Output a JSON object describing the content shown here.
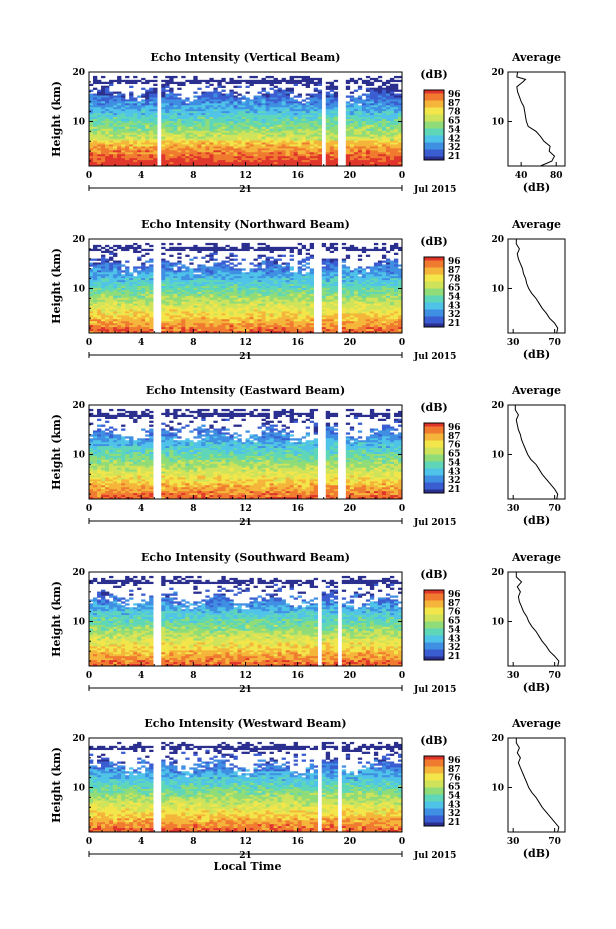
{
  "chart_data": [
    {
      "type": "heatmap",
      "title": "Echo Intensity (Vertical Beam)",
      "ylabel": "Height (km)",
      "ylim": [
        1,
        20
      ],
      "yticks": [
        20,
        10
      ],
      "x_ticks": [
        "0",
        "4",
        "8",
        "12",
        "16",
        "20",
        "0"
      ],
      "x_range_hours": [
        0,
        24
      ],
      "date_marker": "21",
      "date_label": "Jul 2015",
      "colorbar": {
        "unit": "(dB)",
        "ticks": [
          "96",
          "87",
          "78",
          "65",
          "54",
          "42",
          "32",
          "21"
        ]
      },
      "data_gaps_hours": [
        [
          5.1,
          5.6
        ],
        [
          17.8,
          18.1
        ],
        [
          19.2,
          19.6
        ]
      ],
      "profile": {
        "title": "Average",
        "xlabel": "(dB)",
        "xticks": [
          "40",
          "80"
        ],
        "xlim": [
          25,
          90
        ],
        "yticks": [
          20,
          10
        ],
        "points": [
          [
            1,
            62
          ],
          [
            2,
            75
          ],
          [
            3,
            78
          ],
          [
            4,
            72
          ],
          [
            5,
            73
          ],
          [
            6,
            66
          ],
          [
            7,
            62
          ],
          [
            8,
            57
          ],
          [
            9,
            48
          ],
          [
            10,
            46
          ],
          [
            11,
            45
          ],
          [
            12,
            44
          ],
          [
            13,
            43
          ],
          [
            14,
            40
          ],
          [
            15,
            38
          ],
          [
            16,
            36
          ],
          [
            17,
            35
          ],
          [
            18,
            42
          ],
          [
            18.5,
            45
          ],
          [
            19,
            35
          ],
          [
            20,
            36
          ]
        ]
      }
    },
    {
      "type": "heatmap",
      "title": "Echo Intensity (Northward Beam)",
      "ylabel": "Height (km)",
      "ylim": [
        1,
        20
      ],
      "yticks": [
        20,
        10
      ],
      "x_ticks": [
        "0",
        "4",
        "8",
        "12",
        "16",
        "20",
        "0"
      ],
      "x_range_hours": [
        0,
        24
      ],
      "date_marker": "21",
      "date_label": "Jul 2015",
      "colorbar": {
        "unit": "(dB)",
        "ticks": [
          "96",
          "87",
          "78",
          "65",
          "54",
          "43",
          "32",
          "21"
        ]
      },
      "data_gaps_hours": [
        [
          5.0,
          5.5
        ],
        [
          17.3,
          17.7
        ],
        [
          19.1,
          19.5
        ]
      ],
      "profile": {
        "title": "Average",
        "xlabel": "(dB)",
        "xticks": [
          "30",
          "70"
        ],
        "xlim": [
          25,
          80
        ],
        "yticks": [
          20,
          10
        ],
        "points": [
          [
            1,
            72
          ],
          [
            2,
            73
          ],
          [
            3,
            70
          ],
          [
            4,
            65
          ],
          [
            5,
            62
          ],
          [
            6,
            58
          ],
          [
            7,
            55
          ],
          [
            8,
            52
          ],
          [
            9,
            48
          ],
          [
            10,
            45
          ],
          [
            11,
            43
          ],
          [
            12,
            42
          ],
          [
            13,
            40
          ],
          [
            14,
            39
          ],
          [
            15,
            37
          ],
          [
            16,
            35
          ],
          [
            17,
            34
          ],
          [
            18,
            36
          ],
          [
            19,
            33
          ],
          [
            20,
            33
          ]
        ]
      }
    },
    {
      "type": "heatmap",
      "title": "Echo Intensity (Eastward Beam)",
      "ylabel": "Height (km)",
      "ylim": [
        1,
        20
      ],
      "yticks": [
        20,
        10
      ],
      "x_ticks": [
        "0",
        "4",
        "8",
        "12",
        "16",
        "20",
        "0"
      ],
      "x_range_hours": [
        0,
        24
      ],
      "date_marker": "21",
      "date_label": "Jul 2015",
      "colorbar": {
        "unit": "(dB)",
        "ticks": [
          "96",
          "87",
          "76",
          "65",
          "54",
          "43",
          "32",
          "21"
        ]
      },
      "data_gaps_hours": [
        [
          5.0,
          5.5
        ],
        [
          17.6,
          18.0
        ],
        [
          19.2,
          19.6
        ]
      ],
      "profile": {
        "title": "Average",
        "xlabel": "(dB)",
        "xticks": [
          "30",
          "70"
        ],
        "xlim": [
          25,
          80
        ],
        "yticks": [
          20,
          10
        ],
        "points": [
          [
            1,
            72
          ],
          [
            2,
            73
          ],
          [
            3,
            70
          ],
          [
            4,
            66
          ],
          [
            5,
            62
          ],
          [
            6,
            58
          ],
          [
            7,
            55
          ],
          [
            8,
            52
          ],
          [
            9,
            47
          ],
          [
            10,
            44
          ],
          [
            11,
            42
          ],
          [
            12,
            40
          ],
          [
            13,
            38
          ],
          [
            14,
            37
          ],
          [
            15,
            35
          ],
          [
            16,
            34
          ],
          [
            17,
            33
          ],
          [
            18,
            35
          ],
          [
            19,
            32
          ],
          [
            20,
            32
          ]
        ]
      }
    },
    {
      "type": "heatmap",
      "title": "Echo Intensity (Southward Beam)",
      "ylabel": "Height (km)",
      "ylim": [
        1,
        20
      ],
      "yticks": [
        20,
        10
      ],
      "x_ticks": [
        "0",
        "4",
        "8",
        "12",
        "16",
        "20",
        "0"
      ],
      "x_range_hours": [
        0,
        24
      ],
      "date_marker": "21",
      "date_label": "Jul 2015",
      "colorbar": {
        "unit": "(dB)",
        "ticks": [
          "96",
          "87",
          "76",
          "65",
          "54",
          "43",
          "32",
          "21"
        ]
      },
      "data_gaps_hours": [
        [
          5.0,
          5.5
        ],
        [
          17.4,
          17.8
        ],
        [
          19.1,
          19.5
        ]
      ],
      "profile": {
        "title": "Average",
        "xlabel": "(dB)",
        "xticks": [
          "30",
          "70"
        ],
        "xlim": [
          25,
          80
        ],
        "yticks": [
          20,
          10
        ],
        "points": [
          [
            1,
            73
          ],
          [
            2,
            74
          ],
          [
            3,
            70
          ],
          [
            4,
            65
          ],
          [
            5,
            62
          ],
          [
            6,
            58
          ],
          [
            7,
            55
          ],
          [
            8,
            52
          ],
          [
            9,
            48
          ],
          [
            10,
            45
          ],
          [
            11,
            43
          ],
          [
            12,
            40
          ],
          [
            13,
            38
          ],
          [
            14,
            36
          ],
          [
            15,
            35
          ],
          [
            16,
            37
          ],
          [
            17,
            34
          ],
          [
            18,
            38
          ],
          [
            19,
            33
          ],
          [
            20,
            33
          ]
        ]
      }
    },
    {
      "type": "heatmap",
      "title": "Echo Intensity (Westward Beam)",
      "ylabel": "Height (km)",
      "ylim": [
        1,
        20
      ],
      "yticks": [
        20,
        10
      ],
      "x_ticks": [
        "0",
        "4",
        "8",
        "12",
        "16",
        "20",
        "0"
      ],
      "x_range_hours": [
        0,
        24
      ],
      "date_marker": "21",
      "date_label": "Jul 2015",
      "xlabel": "Local Time",
      "colorbar": {
        "unit": "(dB)",
        "ticks": [
          "96",
          "87",
          "76",
          "65",
          "54",
          "43",
          "32",
          "21"
        ]
      },
      "data_gaps_hours": [
        [
          5.0,
          5.5
        ],
        [
          17.4,
          17.8
        ],
        [
          19.1,
          19.5
        ]
      ],
      "profile": {
        "title": "Average",
        "xlabel": "(dB)",
        "xticks": [
          "30",
          "70"
        ],
        "xlim": [
          25,
          80
        ],
        "yticks": [
          20,
          10
        ],
        "points": [
          [
            1,
            73
          ],
          [
            2,
            74
          ],
          [
            3,
            70
          ],
          [
            4,
            66
          ],
          [
            5,
            62
          ],
          [
            6,
            58
          ],
          [
            7,
            55
          ],
          [
            8,
            52
          ],
          [
            9,
            48
          ],
          [
            10,
            45
          ],
          [
            11,
            43
          ],
          [
            12,
            41
          ],
          [
            13,
            39
          ],
          [
            14,
            37
          ],
          [
            15,
            35
          ],
          [
            16,
            37
          ],
          [
            17,
            34
          ],
          [
            18,
            36
          ],
          [
            19,
            33
          ],
          [
            20,
            33
          ]
        ]
      }
    }
  ],
  "colormap": [
    "#2b2f8f",
    "#3a5ed1",
    "#3f8fe3",
    "#4fc3e8",
    "#5fd6b8",
    "#8fdc78",
    "#cfe35a",
    "#f2e64a",
    "#f5b53a",
    "#f07a2f",
    "#e0352a"
  ]
}
